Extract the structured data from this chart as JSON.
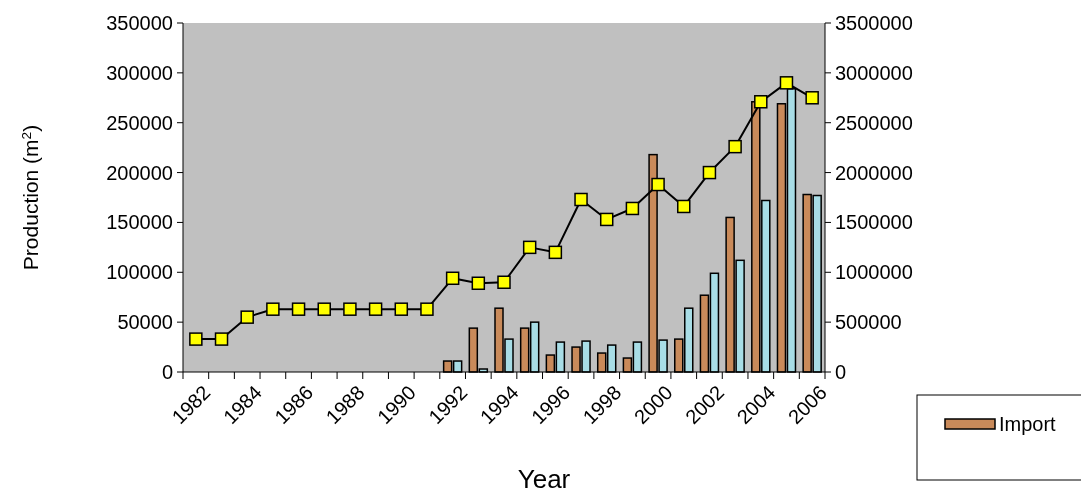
{
  "chart_data": {
    "type": "bar",
    "xlabel": "Year",
    "ylabel": "Production (m$^{2}$)",
    "categories": [
      "1982",
      null,
      "1984",
      null,
      "1986",
      null,
      "1988",
      null,
      "1990",
      null,
      "1992",
      null,
      "1994",
      null,
      "1996",
      null,
      "1998",
      null,
      "2000",
      null,
      "2002",
      null,
      "2004",
      null,
      "2006"
    ],
    "series": [
      {
        "name": "Import",
        "axis": "y2",
        "color": "#c98a5a",
        "values": [
          null,
          null,
          null,
          null,
          null,
          null,
          null,
          null,
          null,
          null,
          110000,
          440000,
          640000,
          440000,
          170000,
          250000,
          190000,
          140000,
          2180000,
          330000,
          770000,
          1550000,
          2710000,
          2690000,
          1780000
        ]
      },
      {
        "axis": "y2",
        "color": "#a8dde6",
        "values": [
          null,
          null,
          null,
          null,
          null,
          null,
          null,
          null,
          null,
          null,
          110000,
          30000,
          330000,
          500000,
          300000,
          310000,
          270000,
          300000,
          320000,
          640000,
          990000,
          1120000,
          1720000,
          2840000,
          1770000
        ]
      },
      {
        "type": "line",
        "color": "#000000",
        "marker": "square",
        "values": [
          33000,
          33000,
          55000,
          63000,
          63000,
          63000,
          63000,
          63000,
          63000,
          63000,
          94000,
          89000,
          90000,
          125000,
          120000,
          173000,
          153000,
          164000,
          188000,
          166000,
          200000,
          226000,
          271000,
          290000,
          275000
        ]
      }
    ],
    "ylim": [
      0,
      350000
    ],
    "yticks": [
      0,
      50000,
      100000,
      150000,
      200000,
      250000,
      300000,
      350000
    ],
    "y2lim": [
      0,
      3500000
    ],
    "y2ticks": [
      0,
      500000,
      1000000,
      1500000,
      2000000,
      2500000,
      3000000,
      3500000
    ],
    "legend": "bottom right",
    "grid": false
  }
}
